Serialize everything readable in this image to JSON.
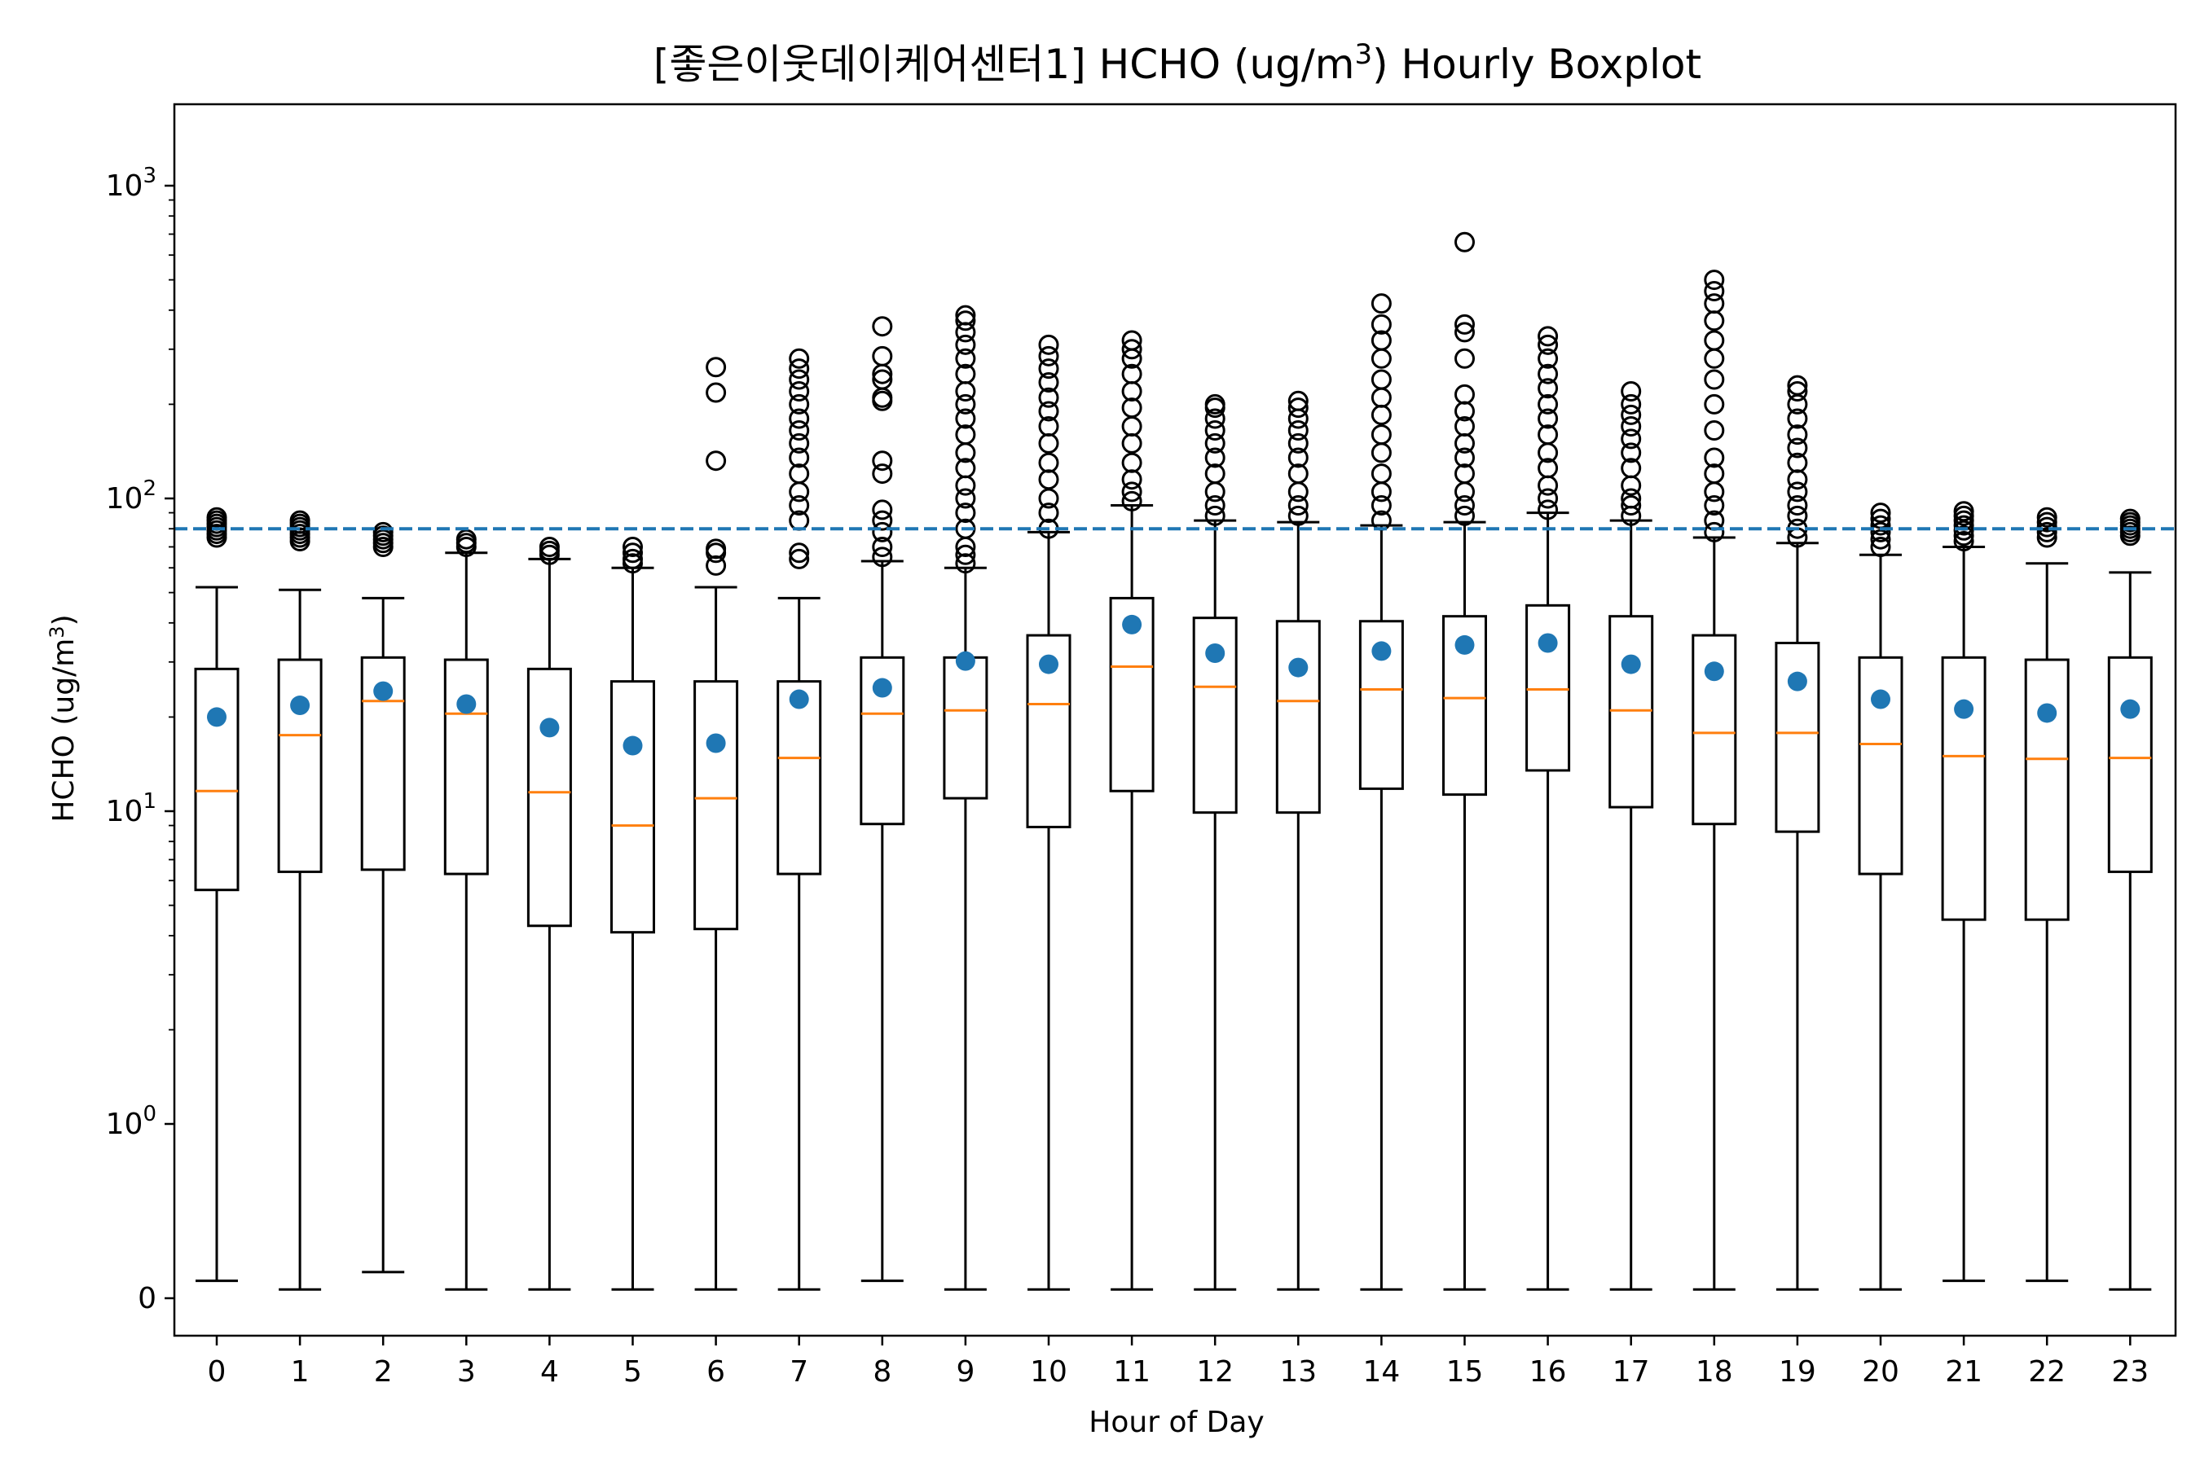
{
  "chart_data": {
    "type": "box",
    "title": "[좋은이웃데이케어센터1] HCHO (ug/m",
    "title_sup": "3",
    "title_tail": ") Hourly Boxplot",
    "xlabel": "Hour of Day",
    "ylabel": "HCHO (ug/m",
    "ylabel_sup": "3",
    "ylabel_tail": ")",
    "yscale": "symlog",
    "ylim": [
      -0.2,
      1000
    ],
    "y_ticks": [
      {
        "value": 0,
        "base": "0",
        "exp": ""
      },
      {
        "value": 1,
        "base": "10",
        "exp": "0"
      },
      {
        "value": 10,
        "base": "10",
        "exp": "1"
      },
      {
        "value": 100,
        "base": "10",
        "exp": "2"
      },
      {
        "value": 1000,
        "base": "10",
        "exp": "3"
      }
    ],
    "threshold": 80,
    "colors": {
      "median": "#ff7f0e",
      "mean": "#1f77b4",
      "threshold": "#1f77b4"
    },
    "categories": [
      "0",
      "1",
      "2",
      "3",
      "4",
      "5",
      "6",
      "7",
      "8",
      "9",
      "10",
      "11",
      "12",
      "13",
      "14",
      "15",
      "16",
      "17",
      "18",
      "19",
      "20",
      "21",
      "22",
      "23"
    ],
    "boxes": [
      {
        "hour": "0",
        "whislo": 0.1,
        "q1": 5.6,
        "median": 11.6,
        "q3": 28.5,
        "whishi": 52,
        "mean": 20.0,
        "fliers": [
          75,
          77,
          79,
          81,
          83,
          85,
          87
        ]
      },
      {
        "hour": "1",
        "whislo": 0.05,
        "q1": 6.4,
        "median": 17.5,
        "q3": 30.5,
        "whishi": 51,
        "mean": 21.8,
        "fliers": [
          73,
          75,
          77,
          79,
          81,
          83,
          85
        ]
      },
      {
        "hour": "2",
        "whislo": 0.15,
        "q1": 6.5,
        "median": 22.5,
        "q3": 31.0,
        "whishi": 48,
        "mean": 24.2,
        "fliers": [
          70,
          72,
          74,
          76,
          78
        ]
      },
      {
        "hour": "3",
        "whislo": 0.05,
        "q1": 6.3,
        "median": 20.5,
        "q3": 30.5,
        "whishi": 67,
        "mean": 22.0,
        "fliers": [
          70,
          72,
          74
        ]
      },
      {
        "hour": "4",
        "whislo": 0.05,
        "q1": 4.3,
        "median": 11.5,
        "q3": 28.5,
        "whishi": 64,
        "mean": 18.5,
        "fliers": [
          66,
          68,
          70
        ]
      },
      {
        "hour": "5",
        "whislo": 0.05,
        "q1": 4.1,
        "median": 9.0,
        "q3": 26.0,
        "whishi": 60,
        "mean": 16.2,
        "fliers": [
          62,
          64,
          67,
          70
        ]
      },
      {
        "hour": "6",
        "whislo": 0.05,
        "q1": 4.2,
        "median": 11.0,
        "q3": 26.0,
        "whishi": 52,
        "mean": 16.5,
        "fliers": [
          61,
          67,
          69,
          132,
          218,
          263
        ]
      },
      {
        "hour": "7",
        "whislo": 0.05,
        "q1": 6.3,
        "median": 14.8,
        "q3": 26.0,
        "whishi": 48,
        "mean": 22.8,
        "fliers": [
          64,
          67,
          85,
          95,
          105,
          120,
          135,
          150,
          165,
          180,
          200,
          220,
          240,
          260,
          280
        ]
      },
      {
        "hour": "8",
        "whislo": 0.1,
        "q1": 9.1,
        "median": 20.5,
        "q3": 31.0,
        "whishi": 63,
        "mean": 24.8,
        "fliers": [
          65,
          70,
          78,
          85,
          92,
          120,
          132,
          205,
          210,
          240,
          250,
          285,
          355
        ]
      },
      {
        "hour": "9",
        "whislo": 0.05,
        "q1": 11.0,
        "median": 21.0,
        "q3": 31.0,
        "whishi": 60,
        "mean": 30.2,
        "fliers": [
          62,
          66,
          70,
          80,
          90,
          100,
          110,
          125,
          140,
          160,
          180,
          200,
          220,
          250,
          280,
          310,
          340,
          370,
          385
        ]
      },
      {
        "hour": "10",
        "whislo": 0.05,
        "q1": 8.9,
        "median": 22.0,
        "q3": 36.5,
        "whishi": 78,
        "mean": 29.5,
        "fliers": [
          80,
          90,
          100,
          115,
          130,
          150,
          170,
          190,
          210,
          235,
          260,
          285,
          310
        ]
      },
      {
        "hour": "11",
        "whislo": 0.05,
        "q1": 11.6,
        "median": 29.0,
        "q3": 48.0,
        "whishi": 95,
        "mean": 39.5,
        "fliers": [
          98,
          105,
          115,
          130,
          150,
          170,
          195,
          220,
          250,
          280,
          300,
          320
        ]
      },
      {
        "hour": "12",
        "whislo": 0.05,
        "q1": 9.9,
        "median": 25.0,
        "q3": 41.5,
        "whishi": 85,
        "mean": 32.0,
        "fliers": [
          88,
          95,
          105,
          120,
          135,
          150,
          165,
          180,
          195,
          200
        ]
      },
      {
        "hour": "13",
        "whislo": 0.05,
        "q1": 9.9,
        "median": 22.5,
        "q3": 40.5,
        "whishi": 84,
        "mean": 28.8,
        "fliers": [
          88,
          95,
          105,
          120,
          135,
          150,
          165,
          180,
          195,
          205
        ]
      },
      {
        "hour": "14",
        "whislo": 0.05,
        "q1": 11.8,
        "median": 24.5,
        "q3": 40.5,
        "whishi": 82,
        "mean": 32.5,
        "fliers": [
          85,
          95,
          105,
          120,
          140,
          160,
          185,
          210,
          240,
          280,
          320,
          360,
          420
        ]
      },
      {
        "hour": "15",
        "whislo": 0.05,
        "q1": 11.3,
        "median": 23.0,
        "q3": 42.0,
        "whishi": 84,
        "mean": 34.0,
        "fliers": [
          88,
          95,
          105,
          120,
          135,
          150,
          170,
          190,
          215,
          280,
          340,
          360,
          660
        ]
      },
      {
        "hour": "16",
        "whislo": 0.05,
        "q1": 13.5,
        "median": 24.5,
        "q3": 45.5,
        "whishi": 90,
        "mean": 34.5,
        "fliers": [
          92,
          100,
          110,
          125,
          140,
          160,
          180,
          200,
          225,
          250,
          280,
          310,
          330
        ]
      },
      {
        "hour": "17",
        "whislo": 0.05,
        "q1": 10.3,
        "median": 21.0,
        "q3": 42.0,
        "whishi": 85,
        "mean": 29.5,
        "fliers": [
          88,
          95,
          100,
          110,
          125,
          140,
          155,
          170,
          185,
          200,
          220
        ]
      },
      {
        "hour": "18",
        "whislo": 0.05,
        "q1": 9.1,
        "median": 17.8,
        "q3": 36.5,
        "whishi": 75,
        "mean": 28.0,
        "fliers": [
          78,
          85,
          95,
          105,
          120,
          135,
          165,
          200,
          240,
          280,
          320,
          370,
          420,
          460,
          500
        ]
      },
      {
        "hour": "19",
        "whislo": 0.05,
        "q1": 8.6,
        "median": 17.8,
        "q3": 34.5,
        "whishi": 72,
        "mean": 26.0,
        "fliers": [
          75,
          80,
          88,
          95,
          105,
          115,
          130,
          145,
          160,
          180,
          200,
          220,
          230
        ]
      },
      {
        "hour": "20",
        "whislo": 0.05,
        "q1": 6.3,
        "median": 16.4,
        "q3": 31.0,
        "whishi": 66,
        "mean": 22.8,
        "fliers": [
          70,
          74,
          78,
          82,
          86,
          90
        ]
      },
      {
        "hour": "21",
        "whislo": 0.1,
        "q1": 4.5,
        "median": 15.0,
        "q3": 31.0,
        "whishi": 70,
        "mean": 21.2,
        "fliers": [
          73,
          76,
          79,
          82,
          85,
          88,
          91
        ]
      },
      {
        "hour": "22",
        "whislo": 0.1,
        "q1": 4.5,
        "median": 14.7,
        "q3": 30.5,
        "whishi": 62,
        "mean": 20.6,
        "fliers": [
          75,
          78,
          81,
          84,
          87
        ]
      },
      {
        "hour": "23",
        "whislo": 0.05,
        "q1": 6.4,
        "median": 14.8,
        "q3": 31.0,
        "whishi": 58,
        "mean": 21.2,
        "fliers": [
          76,
          78,
          80,
          82,
          84,
          86
        ]
      }
    ]
  }
}
